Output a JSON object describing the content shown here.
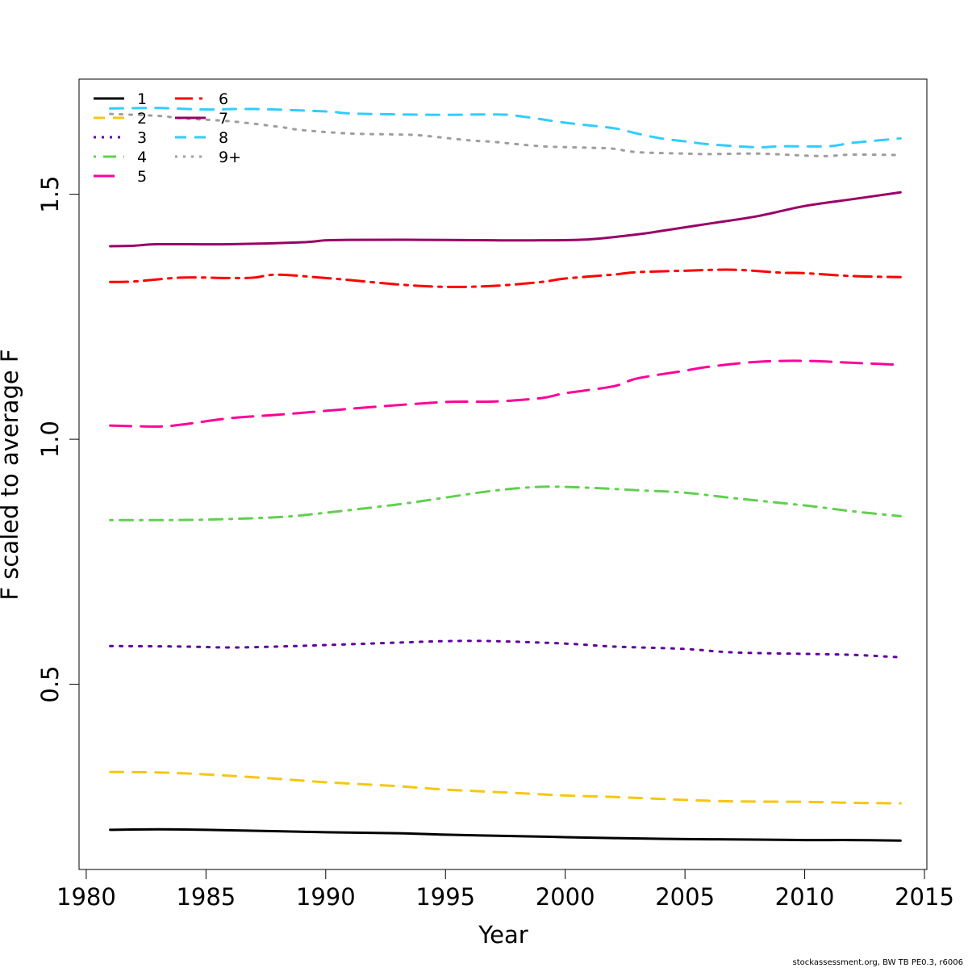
{
  "chart_data": {
    "type": "line",
    "title": "",
    "xlabel": "Year",
    "ylabel": "F scaled to average F",
    "xlim": [
      1979.7,
      2015.1
    ],
    "ylim": [
      0.122,
      1.735
    ],
    "xticks": [
      1980,
      1985,
      1990,
      1995,
      2000,
      2005,
      2010,
      2015
    ],
    "xtick_labels": [
      "1980",
      "1985",
      "1990",
      "1995",
      "2000",
      "2005",
      "2010",
      "2015"
    ],
    "yticks": [
      0.5,
      1.0,
      1.5
    ],
    "ytick_labels": [
      "0.5",
      "1.0",
      "1.5"
    ],
    "grid": false,
    "legend_position": "top-left",
    "legend_columns": 2,
    "series": [
      {
        "name": "1",
        "color": "#000000",
        "dash": "solid",
        "points": [
          [
            1981,
            0.203
          ],
          [
            1983,
            0.204
          ],
          [
            1985,
            0.203
          ],
          [
            1988,
            0.2
          ],
          [
            1990,
            0.198
          ],
          [
            1993,
            0.196
          ],
          [
            1995,
            0.193
          ],
          [
            1998,
            0.19
          ],
          [
            2000,
            0.188
          ],
          [
            2002,
            0.186
          ],
          [
            2005,
            0.184
          ],
          [
            2008,
            0.183
          ],
          [
            2010,
            0.182
          ],
          [
            2012,
            0.182
          ],
          [
            2014,
            0.181
          ]
        ]
      },
      {
        "name": "2",
        "color": "#F5C710",
        "dash": "dashed",
        "points": [
          [
            1981,
            0.321
          ],
          [
            1983,
            0.32
          ],
          [
            1985,
            0.316
          ],
          [
            1988,
            0.307
          ],
          [
            1990,
            0.3
          ],
          [
            1993,
            0.292
          ],
          [
            1995,
            0.285
          ],
          [
            1998,
            0.278
          ],
          [
            2000,
            0.273
          ],
          [
            2002,
            0.27
          ],
          [
            2005,
            0.264
          ],
          [
            2007,
            0.261
          ],
          [
            2010,
            0.26
          ],
          [
            2012,
            0.258
          ],
          [
            2014,
            0.257
          ]
        ]
      },
      {
        "name": "3",
        "color": "#61009B",
        "dash": "dotted",
        "points": [
          [
            1981,
            0.578
          ],
          [
            1984,
            0.577
          ],
          [
            1986,
            0.575
          ],
          [
            1988,
            0.577
          ],
          [
            1990,
            0.58
          ],
          [
            1993,
            0.585
          ],
          [
            1995,
            0.588
          ],
          [
            1997,
            0.588
          ],
          [
            2000,
            0.583
          ],
          [
            2002,
            0.577
          ],
          [
            2005,
            0.572
          ],
          [
            2007,
            0.565
          ],
          [
            2010,
            0.562
          ],
          [
            2012,
            0.56
          ],
          [
            2014,
            0.555
          ]
        ]
      },
      {
        "name": "4",
        "color": "#61D04F",
        "dash": "dotdash",
        "points": [
          [
            1981,
            0.835
          ],
          [
            1983,
            0.835
          ],
          [
            1985,
            0.836
          ],
          [
            1988,
            0.841
          ],
          [
            1990,
            0.85
          ],
          [
            1993,
            0.867
          ],
          [
            1995,
            0.881
          ],
          [
            1997,
            0.895
          ],
          [
            1999,
            0.903
          ],
          [
            2001,
            0.901
          ],
          [
            2003,
            0.896
          ],
          [
            2005,
            0.891
          ],
          [
            2007,
            0.88
          ],
          [
            2010,
            0.865
          ],
          [
            2012,
            0.853
          ],
          [
            2014,
            0.843
          ]
        ]
      },
      {
        "name": "5",
        "color": "#FF0099",
        "dash": "longdash",
        "points": [
          [
            1981,
            1.028
          ],
          [
            1983,
            1.026
          ],
          [
            1984,
            1.03
          ],
          [
            1986,
            1.043
          ],
          [
            1988,
            1.05
          ],
          [
            1990,
            1.058
          ],
          [
            1992,
            1.066
          ],
          [
            1995,
            1.076
          ],
          [
            1997,
            1.077
          ],
          [
            1999,
            1.084
          ],
          [
            2000,
            1.094
          ],
          [
            2002,
            1.108
          ],
          [
            2003,
            1.124
          ],
          [
            2005,
            1.14
          ],
          [
            2006,
            1.148
          ],
          [
            2008,
            1.158
          ],
          [
            2010,
            1.16
          ],
          [
            2012,
            1.156
          ],
          [
            2014,
            1.152
          ]
        ]
      },
      {
        "name": "6",
        "color": "#FF0000",
        "dash": "twodash",
        "points": [
          [
            1981,
            1.321
          ],
          [
            1982,
            1.322
          ],
          [
            1984,
            1.33
          ],
          [
            1986,
            1.329
          ],
          [
            1987,
            1.33
          ],
          [
            1988,
            1.336
          ],
          [
            1990,
            1.329
          ],
          [
            1991,
            1.325
          ],
          [
            1993,
            1.316
          ],
          [
            1995,
            1.311
          ],
          [
            1997,
            1.313
          ],
          [
            1999,
            1.321
          ],
          [
            2000,
            1.328
          ],
          [
            2002,
            1.336
          ],
          [
            2003,
            1.341
          ],
          [
            2005,
            1.344
          ],
          [
            2007,
            1.346
          ],
          [
            2009,
            1.34
          ],
          [
            2010,
            1.339
          ],
          [
            2012,
            1.333
          ],
          [
            2014,
            1.331
          ]
        ]
      },
      {
        "name": "7",
        "color": "#990066",
        "dash": "solid",
        "points": [
          [
            1981,
            1.394
          ],
          [
            1982,
            1.395
          ],
          [
            1983,
            1.398
          ],
          [
            1986,
            1.398
          ],
          [
            1989,
            1.402
          ],
          [
            1990,
            1.406
          ],
          [
            1991,
            1.407
          ],
          [
            1994,
            1.407
          ],
          [
            1997,
            1.406
          ],
          [
            1999,
            1.406
          ],
          [
            2001,
            1.408
          ],
          [
            2003,
            1.418
          ],
          [
            2004,
            1.425
          ],
          [
            2006,
            1.44
          ],
          [
            2008,
            1.455
          ],
          [
            2010,
            1.476
          ],
          [
            2012,
            1.49
          ],
          [
            2014,
            1.504
          ]
        ]
      },
      {
        "name": "8",
        "color": "#33CCFF",
        "dash": "dashed",
        "points": [
          [
            1981,
            1.675
          ],
          [
            1983,
            1.676
          ],
          [
            1985,
            1.673
          ],
          [
            1987,
            1.674
          ],
          [
            1990,
            1.669
          ],
          [
            1991,
            1.665
          ],
          [
            1993,
            1.663
          ],
          [
            1995,
            1.662
          ],
          [
            1997,
            1.663
          ],
          [
            1998,
            1.66
          ],
          [
            2000,
            1.646
          ],
          [
            2002,
            1.635
          ],
          [
            2003,
            1.624
          ],
          [
            2004,
            1.614
          ],
          [
            2005,
            1.608
          ],
          [
            2006,
            1.602
          ],
          [
            2008,
            1.596
          ],
          [
            2009,
            1.598
          ],
          [
            2011,
            1.598
          ],
          [
            2012,
            1.605
          ],
          [
            2014,
            1.614
          ]
        ]
      },
      {
        "name": "9+",
        "color": "#9E9E9E",
        "dash": "dotted",
        "points": [
          [
            1981,
            1.664
          ],
          [
            1983,
            1.66
          ],
          [
            1984,
            1.655
          ],
          [
            1986,
            1.649
          ],
          [
            1988,
            1.638
          ],
          [
            1989,
            1.631
          ],
          [
            1991,
            1.624
          ],
          [
            1993,
            1.622
          ],
          [
            1994,
            1.62
          ],
          [
            1996,
            1.61
          ],
          [
            1997,
            1.607
          ],
          [
            1999,
            1.598
          ],
          [
            2001,
            1.595
          ],
          [
            2002,
            1.593
          ],
          [
            2003,
            1.586
          ],
          [
            2005,
            1.583
          ],
          [
            2006,
            1.582
          ],
          [
            2008,
            1.583
          ],
          [
            2010,
            1.579
          ],
          [
            2011,
            1.578
          ],
          [
            2012,
            1.581
          ],
          [
            2014,
            1.58
          ]
        ]
      }
    ]
  },
  "footer": "stockassessment.org, BW  TB  PE0.3, r6006"
}
